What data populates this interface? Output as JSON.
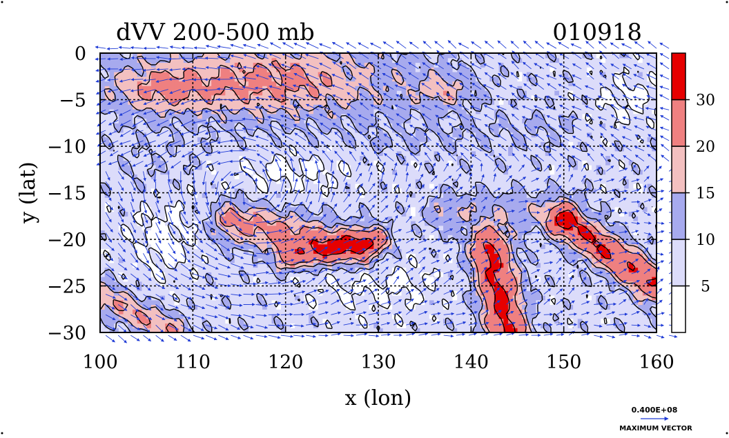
{
  "chart_data": {
    "type": "heatmap",
    "title": "dVV 200-500 mb",
    "date_label": "010918",
    "xlabel": "x (lon)",
    "ylabel": "y (lat)",
    "xlim": [
      100,
      160
    ],
    "ylim": [
      -30,
      0
    ],
    "x_ticks": [
      100,
      110,
      120,
      130,
      140,
      150,
      160
    ],
    "y_ticks": [
      0,
      -5,
      -10,
      -15,
      -20,
      -25,
      -30
    ],
    "x_tick_labels": [
      "100",
      "110",
      "120",
      "130",
      "140",
      "150",
      "160"
    ],
    "y_tick_labels": [
      "0",
      "−5",
      "−10",
      "−15",
      "−20",
      "−25",
      "−30"
    ],
    "grid": true,
    "colorbar": {
      "levels": [
        0,
        5,
        10,
        15,
        20,
        30,
        40
      ],
      "tick_labels": [
        "5",
        "10",
        "15",
        "20",
        "30"
      ],
      "tick_values": [
        5,
        10,
        15,
        20,
        30
      ],
      "colors": [
        "#ffffff",
        "#dcdcfa",
        "#a7aaee",
        "#f3c0c0",
        "#ef8080",
        "#e60000"
      ]
    },
    "vector_legend": {
      "value_label": "0.400E+08",
      "caption": "MAXIMUM VECTOR"
    },
    "arrow_color": "#1f3bd6"
  }
}
